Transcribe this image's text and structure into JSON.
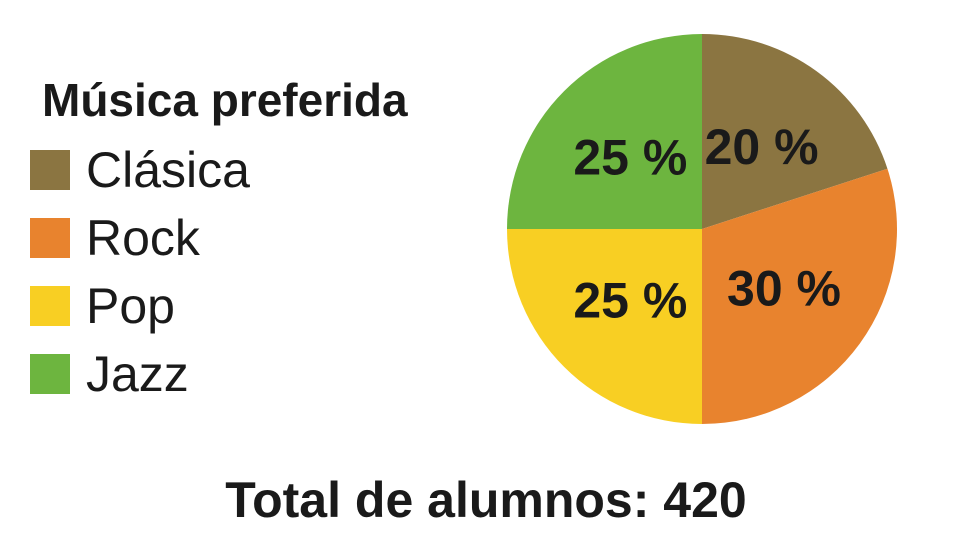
{
  "chart_data": {
    "type": "pie",
    "title": "Música preferida",
    "categories": [
      "Clásica",
      "Rock",
      "Pop",
      "Jazz"
    ],
    "values": [
      20,
      30,
      25,
      25
    ],
    "labels": [
      "20 %",
      "30 %",
      "25 %",
      "25 %"
    ],
    "colors": [
      "#8B7541",
      "#E8832E",
      "#F8CF23",
      "#6DB53F"
    ],
    "legend_placement": "left",
    "footer": "Total de alumnos: 420"
  }
}
